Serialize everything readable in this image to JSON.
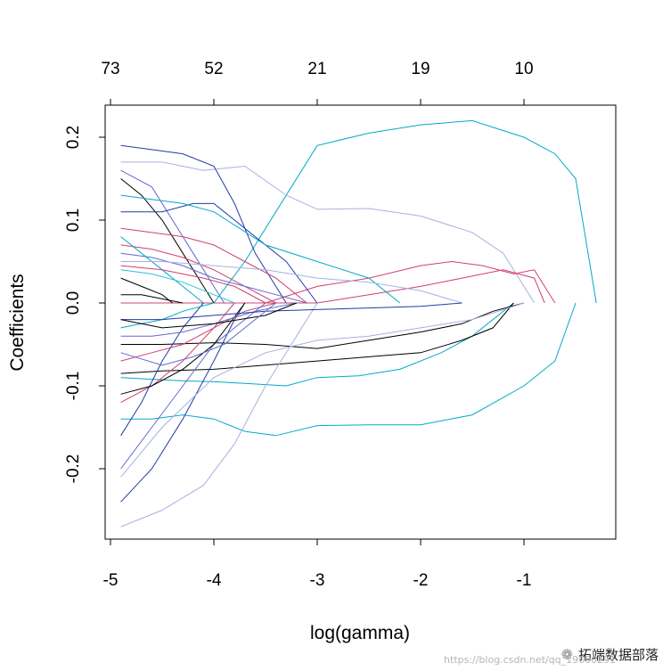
{
  "chart_data": {
    "type": "line",
    "xlabel": "log(gamma)",
    "ylabel": "Coefficients",
    "xlim": [
      -5,
      -0.1
    ],
    "ylim": [
      -0.29,
      0.24
    ],
    "x_ticks": [
      -5,
      -4,
      -3,
      -2,
      -1
    ],
    "x_tick_labels": [
      "-5",
      "-4",
      "-3",
      "-2",
      "-1"
    ],
    "y_ticks": [
      -0.2,
      -0.1,
      0.0,
      0.1,
      0.2
    ],
    "y_tick_labels": [
      "-0.2",
      "-0.1",
      "0.0",
      "0.1",
      "0.2"
    ],
    "top_ticks": [
      -5,
      -4,
      -3,
      -2,
      -1
    ],
    "top_tick_labels": [
      "73",
      "52",
      "21",
      "19",
      "10"
    ],
    "grid": false,
    "colors": [
      "#00aac8",
      "#000000",
      "#d04070",
      "#a8b0e0",
      "#1f3ca8",
      "#606ad0",
      "#30c0d8"
    ],
    "series": [
      {
        "color": "#00aac8",
        "x": [
          -4.9,
          -4.6,
          -4.3,
          -4.0,
          -3.7,
          -3.4,
          -3.0,
          -2.5,
          -2.0,
          -1.5,
          -1.0,
          -0.7,
          -0.5,
          -0.3
        ],
        "y": [
          0.0,
          0.0,
          0.0,
          0.0,
          0.05,
          0.11,
          0.19,
          0.205,
          0.215,
          0.22,
          0.2,
          0.18,
          0.15,
          0.0
        ]
      },
      {
        "color": "#00aac8",
        "x": [
          -4.9,
          -4.6,
          -4.3,
          -4.0,
          -3.7,
          -3.4,
          -3.0,
          -2.5,
          -2.0,
          -1.5,
          -1.0,
          -0.7,
          -0.5
        ],
        "y": [
          -0.14,
          -0.14,
          -0.135,
          -0.14,
          -0.155,
          -0.16,
          -0.148,
          -0.147,
          -0.147,
          -0.135,
          -0.1,
          -0.07,
          0.0
        ]
      },
      {
        "color": "#a8b0e0",
        "x": [
          -4.9,
          -4.5,
          -4.1,
          -3.7,
          -3.3,
          -3.0,
          -2.5,
          -2.0,
          -1.5,
          -1.2,
          -0.9
        ],
        "y": [
          0.17,
          0.17,
          0.16,
          0.165,
          0.13,
          0.113,
          0.114,
          0.105,
          0.085,
          0.06,
          0.0
        ]
      },
      {
        "color": "#00aac8",
        "x": [
          -4.9,
          -4.6,
          -4.3,
          -4.0,
          -3.7,
          -3.3,
          -3.0,
          -2.6,
          -2.2,
          -1.8,
          -1.5,
          -1.1
        ],
        "y": [
          -0.09,
          -0.092,
          -0.094,
          -0.095,
          -0.097,
          -0.1,
          -0.09,
          -0.088,
          -0.08,
          -0.06,
          -0.04,
          0.0
        ]
      },
      {
        "color": "#000000",
        "x": [
          -4.9,
          -4.5,
          -4.0,
          -3.5,
          -3.0,
          -2.5,
          -2.0,
          -1.6,
          -1.3,
          -1.1
        ],
        "y": [
          -0.085,
          -0.082,
          -0.08,
          -0.075,
          -0.07,
          -0.065,
          -0.06,
          -0.045,
          -0.03,
          0.0
        ]
      },
      {
        "color": "#000000",
        "x": [
          -4.9,
          -4.5,
          -4.0,
          -3.5,
          -3.0,
          -2.5,
          -2.0,
          -1.6,
          -1.3,
          -1.0
        ],
        "y": [
          -0.05,
          -0.05,
          -0.048,
          -0.05,
          -0.055,
          -0.045,
          -0.035,
          -0.025,
          -0.01,
          0.0
        ]
      },
      {
        "color": "#d04070",
        "x": [
          -4.9,
          -4.5,
          -4.0,
          -3.5,
          -3.0,
          -2.5,
          -2.0,
          -1.7,
          -1.4,
          -1.1,
          -0.9,
          -0.7
        ],
        "y": [
          0.0,
          0.0,
          0.0,
          0.0,
          0.02,
          0.03,
          0.045,
          0.05,
          0.045,
          0.035,
          0.04,
          0.0
        ]
      },
      {
        "color": "#d04070",
        "x": [
          -4.9,
          -4.5,
          -4.0,
          -3.5,
          -3.0,
          -2.5,
          -2.0,
          -1.6,
          -1.2,
          -0.9,
          -0.8
        ],
        "y": [
          0.0,
          0.0,
          0.0,
          0.0,
          0.0,
          0.01,
          0.02,
          0.03,
          0.04,
          0.03,
          0.0
        ]
      },
      {
        "color": "#1f3ca8",
        "x": [
          -4.9,
          -4.6,
          -4.3,
          -4.0,
          -3.8,
          -3.6,
          -3.3
        ],
        "y": [
          0.19,
          0.185,
          0.18,
          0.165,
          0.12,
          0.06,
          0.0
        ]
      },
      {
        "color": "#606ad0",
        "x": [
          -4.9,
          -4.6,
          -4.4,
          -4.2,
          -4.0,
          -3.9
        ],
        "y": [
          0.16,
          0.14,
          0.1,
          0.06,
          0.02,
          0.0
        ]
      },
      {
        "color": "#000000",
        "x": [
          -4.9,
          -4.7,
          -4.5,
          -4.3,
          -4.1,
          -4.0
        ],
        "y": [
          0.15,
          0.13,
          0.1,
          0.06,
          0.02,
          0.0
        ]
      },
      {
        "color": "#1f3ca8",
        "x": [
          -4.9,
          -4.7,
          -4.5,
          -4.2,
          -4.0,
          -3.6,
          -3.3,
          -3.0
        ],
        "y": [
          0.11,
          0.11,
          0.11,
          0.12,
          0.12,
          0.08,
          0.05,
          0.0
        ]
      },
      {
        "color": "#00aac8",
        "x": [
          -4.9,
          -4.6,
          -4.3,
          -4.0,
          -3.5,
          -3.0,
          -2.5,
          -2.2
        ],
        "y": [
          0.13,
          0.125,
          0.12,
          0.11,
          0.07,
          0.05,
          0.03,
          0.0
        ]
      },
      {
        "color": "#d04070",
        "x": [
          -4.9,
          -4.6,
          -4.3,
          -4.0,
          -3.7,
          -3.4,
          -3.1
        ],
        "y": [
          0.09,
          0.085,
          0.08,
          0.07,
          0.05,
          0.03,
          0.0
        ]
      },
      {
        "color": "#d04070",
        "x": [
          -4.9,
          -4.6,
          -4.3,
          -4.0,
          -3.7,
          -3.4
        ],
        "y": [
          0.07,
          0.065,
          0.055,
          0.04,
          0.02,
          0.0
        ]
      },
      {
        "color": "#606ad0",
        "x": [
          -4.9,
          -4.6,
          -4.3,
          -4.0,
          -3.7,
          -3.4,
          -3.1
        ],
        "y": [
          0.06,
          0.055,
          0.045,
          0.03,
          0.02,
          0.01,
          0.0
        ]
      },
      {
        "color": "#00aac8",
        "x": [
          -4.9,
          -4.7,
          -4.5,
          -4.3,
          -4.1
        ],
        "y": [
          0.08,
          0.06,
          0.04,
          0.02,
          0.0
        ]
      },
      {
        "color": "#000000",
        "x": [
          -4.9,
          -4.7,
          -4.5,
          -4.4
        ],
        "y": [
          0.03,
          0.02,
          0.01,
          0.0
        ]
      },
      {
        "color": "#a8b0e0",
        "x": [
          -4.9,
          -4.5,
          -4.0,
          -3.5,
          -3.0,
          -2.5,
          -2.0,
          -1.6
        ],
        "y": [
          0.05,
          0.05,
          0.045,
          0.04,
          0.03,
          0.025,
          0.015,
          0.0
        ]
      },
      {
        "color": "#1f3ca8",
        "x": [
          -4.9,
          -4.6,
          -4.3,
          -4.0,
          -3.8,
          -3.7
        ],
        "y": [
          -0.24,
          -0.2,
          -0.14,
          -0.07,
          -0.02,
          0.0
        ]
      },
      {
        "color": "#a8b0e0",
        "x": [
          -4.9,
          -4.5,
          -4.1,
          -3.8,
          -3.5,
          -3.2,
          -3.0
        ],
        "y": [
          -0.27,
          -0.25,
          -0.22,
          -0.17,
          -0.1,
          -0.04,
          0.0
        ]
      },
      {
        "color": "#606ad0",
        "x": [
          -4.9,
          -4.6,
          -4.3,
          -4.0,
          -3.7,
          -3.5
        ],
        "y": [
          -0.2,
          -0.15,
          -0.1,
          -0.05,
          -0.02,
          0.0
        ]
      },
      {
        "color": "#1f3ca8",
        "x": [
          -4.9,
          -4.7,
          -4.5,
          -4.3,
          -4.1
        ],
        "y": [
          -0.16,
          -0.12,
          -0.07,
          -0.03,
          0.0
        ]
      },
      {
        "color": "#d04070",
        "x": [
          -4.9,
          -4.6,
          -4.3,
          -4.0,
          -3.8
        ],
        "y": [
          -0.12,
          -0.1,
          -0.07,
          -0.03,
          0.0
        ]
      },
      {
        "color": "#000000",
        "x": [
          -4.9,
          -4.6,
          -4.3,
          -4.0,
          -3.7
        ],
        "y": [
          -0.11,
          -0.1,
          -0.08,
          -0.05,
          0.0
        ]
      },
      {
        "color": "#d04070",
        "x": [
          -4.9,
          -4.6,
          -4.3,
          -4.0,
          -3.7,
          -3.4
        ],
        "y": [
          -0.07,
          -0.06,
          -0.05,
          -0.03,
          -0.01,
          0.0
        ]
      },
      {
        "color": "#606ad0",
        "x": [
          -4.9,
          -4.6,
          -4.3,
          -4.0,
          -3.6,
          -3.2
        ],
        "y": [
          -0.04,
          -0.04,
          -0.035,
          -0.025,
          -0.01,
          0.0
        ]
      },
      {
        "color": "#00aac8",
        "x": [
          -4.9,
          -4.7,
          -4.5,
          -4.3,
          -4.0
        ],
        "y": [
          -0.03,
          -0.025,
          -0.02,
          -0.01,
          0.0
        ]
      },
      {
        "color": "#a8b0e0",
        "x": [
          -4.9,
          -4.5,
          -4.0,
          -3.5,
          -3.0,
          -2.5,
          -2.0,
          -1.5,
          -1.0
        ],
        "y": [
          -0.21,
          -0.15,
          -0.09,
          -0.06,
          -0.045,
          -0.04,
          -0.03,
          -0.02,
          0.0
        ]
      },
      {
        "color": "#1f3ca8",
        "x": [
          -4.9,
          -4.5,
          -4.0,
          -3.5,
          -3.0,
          -2.5,
          -2.0,
          -1.6
        ],
        "y": [
          -0.02,
          -0.02,
          -0.015,
          -0.01,
          -0.008,
          -0.006,
          -0.004,
          0.0
        ]
      },
      {
        "color": "#000000",
        "x": [
          -4.9,
          -4.5,
          -4.0,
          -3.5,
          -3.2
        ],
        "y": [
          -0.02,
          -0.03,
          -0.025,
          -0.015,
          0.0
        ]
      },
      {
        "color": "#606ad0",
        "x": [
          -4.9,
          -4.5,
          -4.2,
          -3.9,
          -3.6,
          -3.4
        ],
        "y": [
          -0.06,
          -0.075,
          -0.065,
          -0.05,
          -0.02,
          0.0
        ]
      },
      {
        "color": "#30c0d8",
        "x": [
          -4.9,
          -4.6,
          -4.3,
          -4.0,
          -3.8
        ],
        "y": [
          0.04,
          0.035,
          0.025,
          0.01,
          0.0
        ]
      },
      {
        "color": "#d04070",
        "x": [
          -4.9,
          -4.5,
          -4.1,
          -3.8,
          -3.5
        ],
        "y": [
          0.045,
          0.04,
          0.03,
          0.02,
          0.0
        ]
      },
      {
        "color": "#000000",
        "x": [
          -4.9,
          -4.7,
          -4.5,
          -4.3
        ],
        "y": [
          0.01,
          0.01,
          0.005,
          0.0
        ]
      }
    ]
  },
  "watermark": {
    "label": "拓端数据部落",
    "url": "https://blog.csdn.net/qq_19600291"
  }
}
